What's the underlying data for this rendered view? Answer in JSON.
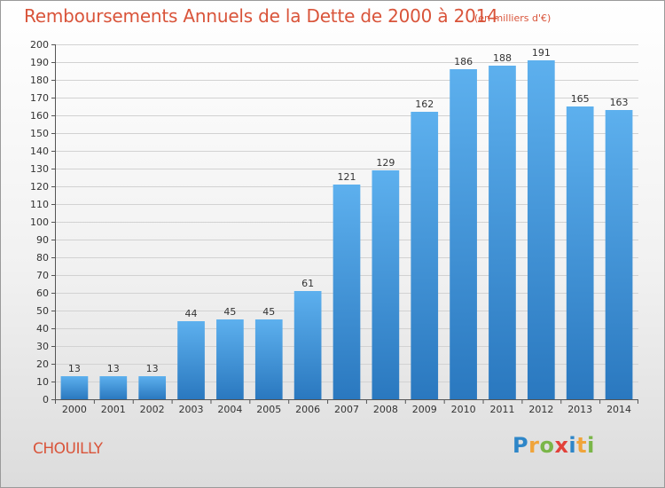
{
  "header": {
    "title": "Remboursements Annuels de la Dette de 2000 à 2014",
    "subtitle": "(en milliers d'€)"
  },
  "footer": {
    "commune": "CHOUILLY",
    "logo_letters": [
      {
        "char": "P",
        "color": "#2e86c8"
      },
      {
        "char": "r",
        "color": "#f0a43a"
      },
      {
        "char": "o",
        "color": "#7ab648"
      },
      {
        "char": "x",
        "color": "#e2413a"
      },
      {
        "char": "i",
        "color": "#2e86c8"
      },
      {
        "char": "t",
        "color": "#f0a43a"
      },
      {
        "char": "i",
        "color": "#7ab648"
      }
    ]
  },
  "chart_data": {
    "type": "bar",
    "title": "Remboursements Annuels de la Dette de 2000 à 2014",
    "subtitle": "(en milliers d'€)",
    "categories": [
      "2000",
      "2001",
      "2002",
      "2003",
      "2004",
      "2005",
      "2006",
      "2007",
      "2008",
      "2009",
      "2010",
      "2011",
      "2012",
      "2013",
      "2014"
    ],
    "values": [
      13,
      13,
      13,
      44,
      45,
      45,
      61,
      121,
      129,
      162,
      186,
      188,
      191,
      165,
      163
    ],
    "ylim": [
      0,
      200
    ],
    "yticks": [
      0,
      10,
      20,
      30,
      40,
      50,
      60,
      70,
      80,
      90,
      100,
      110,
      120,
      130,
      140,
      150,
      160,
      170,
      180,
      190,
      200
    ],
    "grid": true,
    "bar_color": "#4a9fe0",
    "bar_color_dark": "#2a78bf"
  }
}
